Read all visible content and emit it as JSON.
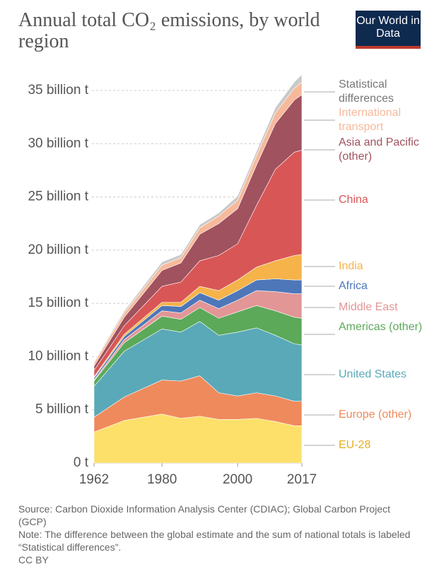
{
  "header": {
    "logo": "Our World in Data"
  },
  "chart_data": {
    "type": "stacked-area",
    "title": "Annual total CO₂ emissions, by world region",
    "x": [
      1962,
      1970,
      1980,
      1985,
      1990,
      1995,
      2000,
      2005,
      2010,
      2015,
      2017
    ],
    "xlim": [
      1962,
      2017
    ],
    "xticks": [
      1962,
      1980,
      2000,
      2017
    ],
    "ylim": [
      0,
      35
    ],
    "yticks": [
      {
        "value": 0,
        "label": "0 t"
      },
      {
        "value": 5,
        "label": "5 billion t"
      },
      {
        "value": 10,
        "label": "10 billion t"
      },
      {
        "value": 15,
        "label": "15 billion t"
      },
      {
        "value": 20,
        "label": "20 billion t"
      },
      {
        "value": 25,
        "label": "25 billion t"
      },
      {
        "value": 30,
        "label": "30 billion t"
      },
      {
        "value": 35,
        "label": "35 billion t"
      }
    ],
    "grid": true,
    "series": [
      {
        "name": "EU-28",
        "color": "#fce06a",
        "values": [
          2.9,
          4.0,
          4.6,
          4.2,
          4.4,
          4.1,
          4.1,
          4.2,
          3.9,
          3.5,
          3.5
        ]
      },
      {
        "name": "Europe (other)",
        "color": "#ef8a5c",
        "values": [
          1.4,
          2.2,
          3.2,
          3.5,
          3.8,
          2.5,
          2.2,
          2.4,
          2.4,
          2.3,
          2.3
        ]
      },
      {
        "name": "United States",
        "color": "#5aa9b8",
        "values": [
          2.9,
          4.3,
          4.8,
          4.6,
          5.1,
          5.4,
          6.0,
          6.1,
          5.7,
          5.4,
          5.3
        ]
      },
      {
        "name": "Americas (other)",
        "color": "#5ca95a",
        "values": [
          0.5,
          0.8,
          1.2,
          1.2,
          1.3,
          1.6,
          1.9,
          2.1,
          2.3,
          2.5,
          2.5
        ]
      },
      {
        "name": "Middle East",
        "color": "#e29696",
        "values": [
          0.1,
          0.3,
          0.5,
          0.6,
          0.7,
          0.9,
          1.1,
          1.4,
          1.8,
          2.2,
          2.3
        ]
      },
      {
        "name": "Africa",
        "color": "#4e77b9",
        "values": [
          0.2,
          0.3,
          0.5,
          0.6,
          0.7,
          0.8,
          0.9,
          1.0,
          1.2,
          1.3,
          1.3
        ]
      },
      {
        "name": "India",
        "color": "#f5b34a",
        "values": [
          0.1,
          0.2,
          0.3,
          0.4,
          0.6,
          0.9,
          1.0,
          1.2,
          1.7,
          2.3,
          2.4
        ]
      },
      {
        "name": "China",
        "color": "#d95656",
        "values": [
          0.6,
          0.8,
          1.5,
          1.9,
          2.4,
          3.3,
          3.4,
          5.8,
          8.6,
          9.7,
          9.8
        ]
      },
      {
        "name": "Asia and Pacific (other)",
        "color": "#a0525e",
        "values": [
          0.4,
          0.8,
          1.5,
          1.8,
          2.5,
          3.0,
          3.3,
          3.8,
          4.3,
          4.9,
          5.2
        ]
      },
      {
        "name": "International transport",
        "color": "#f7b99a",
        "values": [
          0.3,
          0.4,
          0.5,
          0.5,
          0.6,
          0.7,
          0.8,
          0.9,
          1.0,
          1.1,
          1.2
        ]
      },
      {
        "name": "Statistical differences",
        "color": "#c9c9c9",
        "values": [
          0.1,
          0.2,
          0.3,
          0.3,
          0.3,
          0.3,
          0.4,
          0.4,
          0.5,
          0.6,
          0.7
        ]
      }
    ],
    "source": "Source: Carbon Dioxide Information Analysis Center (CDIAC); Global Carbon Project (GCP)",
    "note": "Note: The difference between the global estimate and the sum of national totals is labeled “Statistical differences”.",
    "license": "CC BY"
  }
}
